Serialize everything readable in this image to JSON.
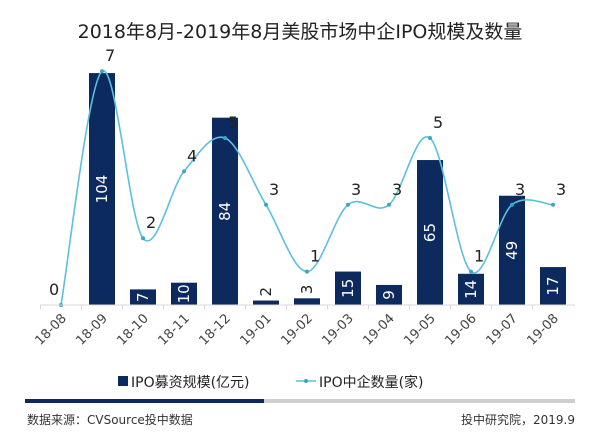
{
  "chart_data": {
    "type": "bar+line",
    "title": "2018年8月-2019年8月美股市场中企IPO规模及数量",
    "categories": [
      "18-08",
      "18-09",
      "18-10",
      "18-11",
      "18-12",
      "19-01",
      "19-02",
      "19-03",
      "19-04",
      "19-05",
      "19-06",
      "19-07",
      "19-08"
    ],
    "series": [
      {
        "name": "IPO募资规模(亿元)",
        "type": "bar",
        "values": [
          0,
          104,
          7,
          10,
          84,
          2,
          3,
          15,
          9,
          65,
          14,
          49,
          17
        ],
        "color": "#0c2a5e"
      },
      {
        "name": "IPO中企数量(家)",
        "type": "line",
        "values": [
          0,
          7,
          2,
          4,
          5,
          3,
          1,
          3,
          3,
          5,
          1,
          3,
          3
        ],
        "color": "#5bc0de"
      }
    ],
    "grid": false,
    "legend": "bottom"
  },
  "footer": {
    "source": "数据来源：CVSource投中数据",
    "credit": "投中研究院，2019.9"
  }
}
